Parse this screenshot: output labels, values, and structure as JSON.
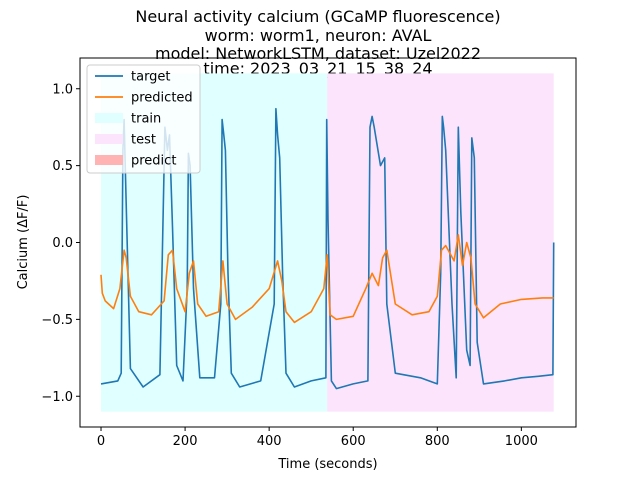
{
  "chart_data": {
    "type": "line",
    "title_lines": [
      "Neural activity calcium (GCaMP fluorescence)",
      "worm: worm1, neuron: AVAL",
      "model: NetworkLSTM, dataset: Uzel2022",
      "time: 2023_03_21_15_38_24"
    ],
    "xlabel": "Time (seconds)",
    "ylabel": "Calcium (ΔF/F)",
    "xlim": [
      -50,
      1130
    ],
    "ylim": [
      -1.2,
      1.2
    ],
    "xticks": [
      0,
      200,
      400,
      600,
      800,
      1000
    ],
    "xtick_labels": [
      "0",
      "200",
      "400",
      "600",
      "800",
      "1000"
    ],
    "yticks": [
      -1.0,
      -0.5,
      0.0,
      0.5,
      1.0
    ],
    "ytick_labels": [
      "−1.0",
      "−0.5",
      "0.0",
      "0.5",
      "1.0"
    ],
    "grid": false,
    "legend_position": "top-left",
    "legend": [
      {
        "label": "target",
        "kind": "line",
        "color": "#1f77b4"
      },
      {
        "label": "predicted",
        "kind": "line",
        "color": "#ff7f0e"
      },
      {
        "label": "train",
        "kind": "patch",
        "color": "#e0ffff"
      },
      {
        "label": "test",
        "kind": "patch",
        "color": "#fce4fc"
      },
      {
        "label": "predict",
        "kind": "patch",
        "color": "#ffb3b3"
      }
    ],
    "regions": [
      {
        "name": "train",
        "x0": 0,
        "x1": 538,
        "y0": -1.1,
        "y1": 1.1,
        "color": "#e0ffff"
      },
      {
        "name": "test",
        "x0": 538,
        "x1": 1077,
        "y0": -1.1,
        "y1": 1.1,
        "color": "#fce4fc"
      }
    ],
    "series": [
      {
        "name": "target",
        "color": "#1f77b4",
        "x": [
          0,
          20,
          40,
          48,
          52,
          55,
          60,
          70,
          100,
          140,
          152,
          156,
          158,
          163,
          170,
          180,
          195,
          205,
          208,
          212,
          220,
          235,
          270,
          285,
          288,
          292,
          296,
          302,
          310,
          330,
          380,
          412,
          416,
          420,
          425,
          432,
          440,
          460,
          500,
          535,
          537,
          540,
          548,
          560,
          600,
          635,
          640,
          645,
          650,
          665,
          675,
          680,
          700,
          760,
          800,
          808,
          812,
          815,
          820,
          835,
          845,
          850,
          856,
          870,
          878,
          882,
          888,
          895,
          910,
          960,
          1000,
          1040,
          1075,
          1077
        ],
        "y": [
          -0.92,
          -0.91,
          -0.9,
          -0.85,
          0.6,
          0.8,
          0.25,
          -0.82,
          -0.94,
          -0.86,
          0.75,
          0.65,
          0.6,
          0.7,
          0.1,
          -0.8,
          -0.9,
          -0.3,
          0.58,
          0.5,
          -0.3,
          -0.88,
          -0.88,
          -0.4,
          0.8,
          0.7,
          0.6,
          -0.2,
          -0.85,
          -0.94,
          -0.9,
          -0.4,
          0.87,
          0.7,
          0.55,
          -0.2,
          -0.85,
          -0.94,
          -0.9,
          -0.88,
          0.8,
          0.15,
          -0.9,
          -0.95,
          -0.92,
          -0.9,
          0.75,
          0.82,
          0.75,
          0.5,
          0.55,
          -0.4,
          -0.85,
          -0.88,
          -0.92,
          -0.2,
          0.82,
          0.75,
          0.6,
          -0.4,
          -0.88,
          0.75,
          0.2,
          -0.7,
          -0.8,
          0.68,
          0.55,
          -0.65,
          -0.92,
          -0.9,
          -0.88,
          -0.87,
          -0.86,
          0.0
        ]
      },
      {
        "name": "predicted",
        "color": "#ff7f0e",
        "x": [
          0,
          3,
          10,
          30,
          45,
          55,
          60,
          70,
          90,
          120,
          150,
          160,
          170,
          180,
          200,
          210,
          220,
          230,
          250,
          280,
          290,
          300,
          320,
          360,
          400,
          420,
          430,
          440,
          460,
          500,
          530,
          538,
          545,
          560,
          600,
          630,
          645,
          660,
          670,
          680,
          700,
          740,
          780,
          800,
          810,
          820,
          840,
          850,
          860,
          870,
          880,
          890,
          910,
          950,
          1000,
          1050,
          1077
        ],
        "y": [
          -0.21,
          -0.33,
          -0.38,
          -0.43,
          -0.3,
          -0.05,
          -0.1,
          -0.35,
          -0.45,
          -0.47,
          -0.38,
          -0.08,
          -0.05,
          -0.3,
          -0.45,
          -0.2,
          -0.12,
          -0.4,
          -0.48,
          -0.45,
          -0.12,
          -0.4,
          -0.5,
          -0.42,
          -0.3,
          -0.12,
          -0.25,
          -0.45,
          -0.52,
          -0.45,
          -0.3,
          -0.08,
          -0.47,
          -0.5,
          -0.48,
          -0.3,
          -0.2,
          -0.28,
          -0.1,
          -0.05,
          -0.4,
          -0.47,
          -0.45,
          -0.35,
          -0.05,
          -0.02,
          -0.12,
          0.05,
          -0.15,
          0.0,
          -0.1,
          -0.4,
          -0.49,
          -0.4,
          -0.37,
          -0.36,
          -0.36
        ]
      }
    ]
  }
}
